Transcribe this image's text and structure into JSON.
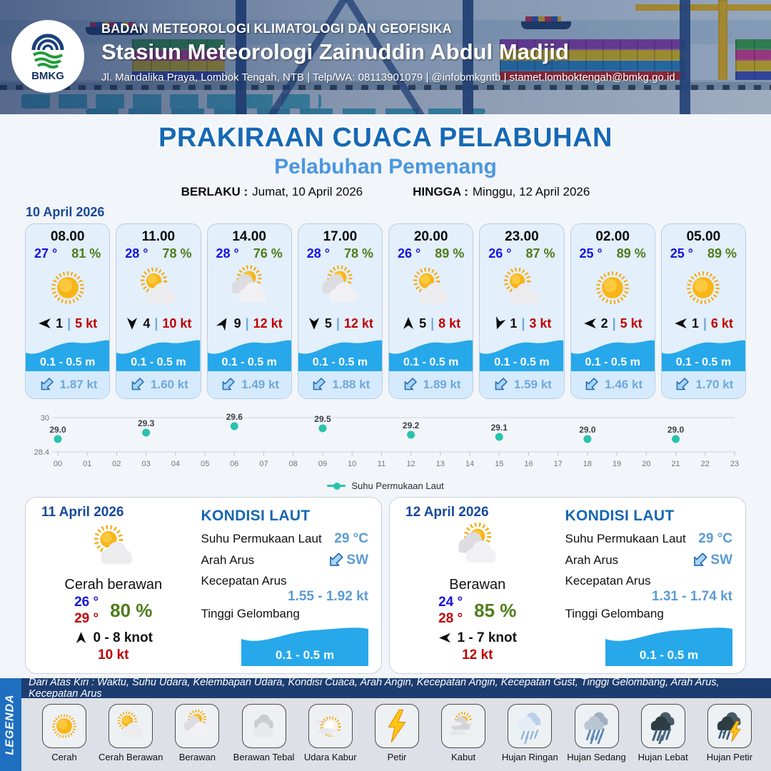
{
  "header": {
    "org": "BADAN METEOROLOGI KLIMATOLOGI DAN GEOFISIKA",
    "station": "Stasiun Meteorologi Zainuddin Abdul Madjid",
    "contact": "Jl. Mandalika Praya, Lombok Tengah, NTB | Telp/WA: 08113901079 | @infobmkgntb | stamet.lomboktengah@bmkg.go.id",
    "logo_text": "BMKG"
  },
  "title": "PRAKIRAAN CUACA PELABUHAN",
  "subtitle": "Pelabuhan Pemenang",
  "validity": {
    "from_label": "BERLAKU :",
    "from": "Jumat, 10 April 2026",
    "to_label": "HINGGA :",
    "to": "Minggu, 12 April 2026"
  },
  "forecast_date": "10 April 2026",
  "ui": {
    "wind_sep": "|"
  },
  "hourly": [
    {
      "time": "08.00",
      "temp": "27 °",
      "humidity": "81 %",
      "icon": "sun",
      "wind_dir_deg": 270,
      "wind_speed": "1",
      "gust": "5 kt",
      "wave": "0.1 - 0.5 m",
      "current": "1.87 kt"
    },
    {
      "time": "11.00",
      "temp": "28 °",
      "humidity": "78 %",
      "icon": "sun-cloud",
      "wind_dir_deg": 180,
      "wind_speed": "4",
      "gust": "10 kt",
      "wave": "0.1 - 0.5 m",
      "current": "1.60 kt"
    },
    {
      "time": "14.00",
      "temp": "28 °",
      "humidity": "76 %",
      "icon": "cloud-sun",
      "wind_dir_deg": 30,
      "wind_speed": "9",
      "gust": "12 kt",
      "wave": "0.1 - 0.5 m",
      "current": "1.49 kt"
    },
    {
      "time": "17.00",
      "temp": "28 °",
      "humidity": "78 %",
      "icon": "cloud-sun",
      "wind_dir_deg": 180,
      "wind_speed": "5",
      "gust": "12 kt",
      "wave": "0.1 - 0.5 m",
      "current": "1.88 kt"
    },
    {
      "time": "20.00",
      "temp": "26 °",
      "humidity": "89 %",
      "icon": "sun-cloud",
      "wind_dir_deg": 0,
      "wind_speed": "5",
      "gust": "8 kt",
      "wave": "0.1 - 0.5 m",
      "current": "1.89 kt"
    },
    {
      "time": "23.00",
      "temp": "26 °",
      "humidity": "87 %",
      "icon": "sun-cloud",
      "wind_dir_deg": 200,
      "wind_speed": "1",
      "gust": "3 kt",
      "wave": "0.1 - 0.5 m",
      "current": "1.59 kt"
    },
    {
      "time": "02.00",
      "temp": "25 °",
      "humidity": "89 %",
      "icon": "sun",
      "wind_dir_deg": 270,
      "wind_speed": "2",
      "gust": "5 kt",
      "wave": "0.1 - 0.5 m",
      "current": "1.46 kt"
    },
    {
      "time": "05.00",
      "temp": "25 °",
      "humidity": "89 %",
      "icon": "sun",
      "wind_dir_deg": 270,
      "wind_speed": "1",
      "gust": "6 kt",
      "wave": "0.1 - 0.5 m",
      "current": "1.70 kt"
    }
  ],
  "chart_data": {
    "type": "scatter",
    "series": [
      {
        "name": "Suhu Permukaan Laut",
        "x": [
          0,
          3,
          6,
          9,
          12,
          15,
          18,
          21
        ],
        "values": [
          29.0,
          29.3,
          29.6,
          29.5,
          29.2,
          29.1,
          29.0,
          29.0
        ]
      }
    ],
    "x_ticks": [
      "00",
      "01",
      "02",
      "03",
      "04",
      "05",
      "06",
      "07",
      "08",
      "09",
      "10",
      "11",
      "12",
      "13",
      "14",
      "15",
      "16",
      "17",
      "18",
      "19",
      "20",
      "21",
      "22",
      "23"
    ],
    "ylim": [
      28.4,
      30
    ],
    "y_ticks": [
      30,
      28.4
    ],
    "legend_position": "bottom",
    "point_color": "#28c3ad",
    "grid": true
  },
  "days": [
    {
      "date": "11 April 2026",
      "icon": "sun-cloud",
      "condition": "Cerah berawan",
      "temp_min": "26 °",
      "temp_max": "29 °",
      "humidity": "80 %",
      "wind_dir_deg": 0,
      "wind_range": "0  - 8 knot",
      "gust": "10 kt",
      "sea": {
        "heading": "KONDISI LAUT",
        "sst_label": "Suhu Permukaan Laut",
        "sst": "29 °C",
        "current_dir_label": "Arah Arus",
        "current_dir": "SW",
        "current_speed_label": "Kecepatan Arus",
        "current_speed": "1.55 - 1.92 kt",
        "wave_label": "Tinggi Gelombang",
        "wave": "0.1 - 0.5 m"
      }
    },
    {
      "date": "12 April 2026",
      "icon": "cloud-sun",
      "condition": "Berawan",
      "temp_min": "24 °",
      "temp_max": "28 °",
      "humidity": "85 %",
      "wind_dir_deg": 270,
      "wind_range": "1  - 7 knot",
      "gust": "12 kt",
      "sea": {
        "heading": "KONDISI LAUT",
        "sst_label": "Suhu Permukaan Laut",
        "sst": "29 °C",
        "current_dir_label": "Arah Arus",
        "current_dir": "SW",
        "current_speed_label": "Kecepatan Arus",
        "current_speed": "1.31 - 1.74 kt",
        "wave_label": "Tinggi Gelombang",
        "wave": "0.1 - 0.5 m"
      }
    }
  ],
  "legend": {
    "vertical_label": "LEGENDA",
    "description": "Dari Atas Kiri : Waktu, Suhu Udara, Kelembapan Udara, Kondisi Cuaca, Arah Angin, Kecepatan Angin, Kecepatan Gust, Tinggi Gelombang, Arah Arus, Kecepatan Arus",
    "items": [
      {
        "label": "Cerah",
        "icon": "sun"
      },
      {
        "label": "Cerah Berawan",
        "icon": "sun-cloud"
      },
      {
        "label": "Berawan",
        "icon": "cloud-sun"
      },
      {
        "label": "Berawan Tebal",
        "icon": "clouds"
      },
      {
        "label": "Udara Kabur",
        "icon": "haze"
      },
      {
        "label": "Petir",
        "icon": "lightning"
      },
      {
        "label": "Kabut",
        "icon": "fog"
      },
      {
        "label": "Hujan Ringan",
        "icon": "rain-light"
      },
      {
        "label": "Hujan Sedang",
        "icon": "rain-medium"
      },
      {
        "label": "Hujan Lebat",
        "icon": "rain-heavy"
      },
      {
        "label": "Hujan Petir",
        "icon": "rain-thunder"
      }
    ]
  },
  "colors": {
    "accent_blue": "#1769b5",
    "light_blue": "#4b97e0",
    "temp_blue": "#1414e0",
    "humidity_green": "#4e7d1a",
    "gust_red": "#c00000",
    "value_blue": "#5b9bd5",
    "wave_blue": "#27a8ea",
    "sst_teal": "#28c3ad",
    "legend_bar_blue": "#1e6fc0",
    "legend_strip_navy": "#1d3d70"
  }
}
